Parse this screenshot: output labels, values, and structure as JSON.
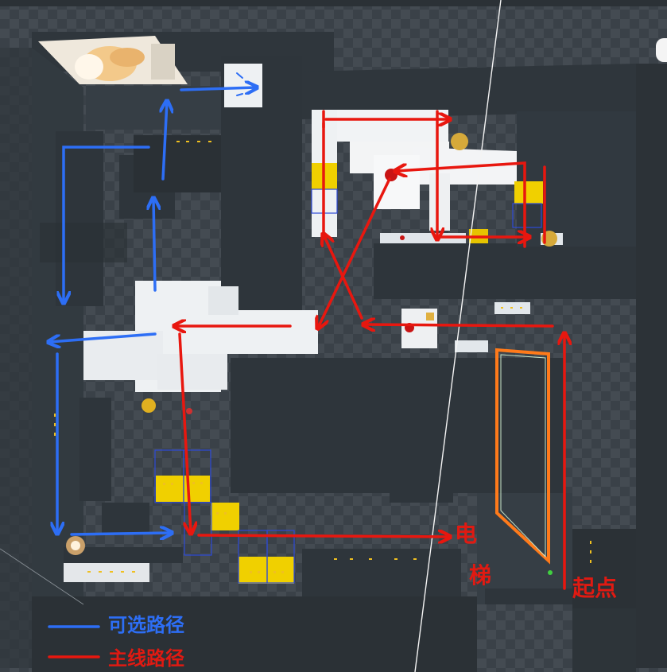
{
  "scene": {
    "labels": {
      "elevator_line1": "电",
      "elevator_line2": "梯",
      "start_point": "起点"
    },
    "legend": {
      "optional_path": "可选路径",
      "main_path": "主线路径"
    },
    "colors": {
      "optional_path": "#2d6ef5",
      "main_path": "#e8170f",
      "floor_dark": "#2e353b",
      "floor_light": "#e9ecef",
      "yellow_block": "#f0d000",
      "elevator_outline": "#ff7a1a"
    }
  }
}
